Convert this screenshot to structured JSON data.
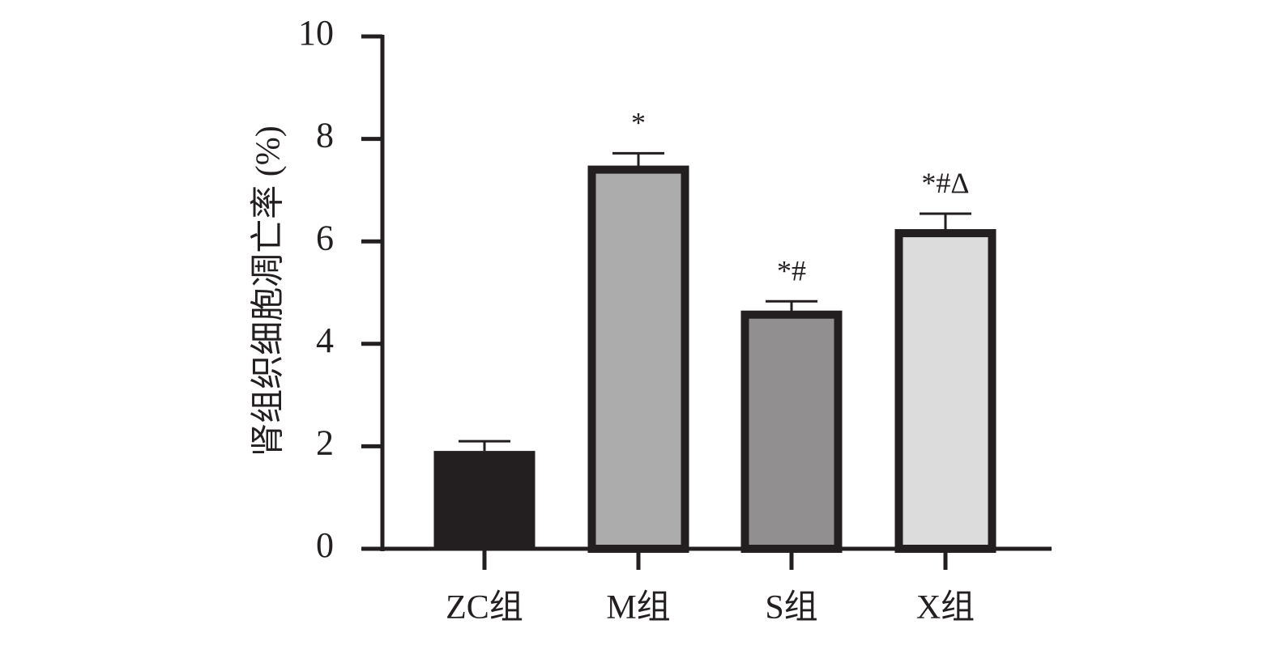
{
  "chart_data": {
    "type": "bar",
    "title": "",
    "xlabel": "",
    "ylabel": "肾组织细胞凋亡率 (%)",
    "ylim": [
      0,
      10
    ],
    "yticks": [
      "0",
      "2",
      "4",
      "6",
      "8",
      "10"
    ],
    "grid": false,
    "categories": [
      "ZC组",
      "M组",
      "S组",
      "X组"
    ],
    "values": [
      1.91,
      7.4,
      4.57,
      6.16
    ],
    "error_upper": [
      0.19,
      0.32,
      0.26,
      0.38
    ],
    "annotations": [
      "",
      "*",
      "*#",
      "*#Δ"
    ],
    "colors": [
      "#231f20",
      "#adacad",
      "#918f90",
      "#dcdcdc"
    ],
    "outline_color": "#231f20"
  }
}
